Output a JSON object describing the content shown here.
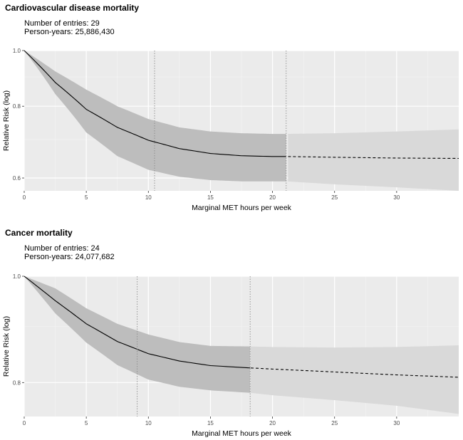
{
  "chart_data": [
    {
      "type": "line",
      "title": "Cardiovascular disease mortality",
      "entries_text": "Number of entries: 29",
      "person_years_text": "Person-years: 25,886,430",
      "xlabel": "Marginal MET hours per week",
      "ylabel": "Relative Risk (log)",
      "log_y": true,
      "xlim": [
        0,
        35
      ],
      "ylim": [
        0.57,
        1.0
      ],
      "x_ticks": [
        0,
        5,
        10,
        15,
        20,
        25,
        30
      ],
      "x_tick_labels": [
        "0",
        "5",
        "10",
        "15",
        "20",
        "25",
        "30"
      ],
      "y_ticks": [
        0.6,
        0.8,
        1.0
      ],
      "y_tick_labels": [
        "0.6",
        "0.8",
        "1.0"
      ],
      "reference_lines_x": [
        10.5,
        21.1
      ],
      "observed_max_x": 21.1,
      "grid": true,
      "series": [
        {
          "x": [
            0,
            2.5,
            5,
            7.5,
            10,
            12.5,
            15,
            17.5,
            20,
            21.1,
            25,
            30,
            35
          ],
          "y": [
            1.0,
            0.88,
            0.79,
            0.735,
            0.698,
            0.675,
            0.662,
            0.656,
            0.654,
            0.654,
            0.652,
            0.65,
            0.649
          ],
          "lower": [
            1.0,
            0.84,
            0.72,
            0.655,
            0.62,
            0.603,
            0.595,
            0.592,
            0.592,
            0.592,
            0.585,
            0.578,
            0.57
          ],
          "upper": [
            1.0,
            0.92,
            0.855,
            0.8,
            0.76,
            0.735,
            0.723,
            0.718,
            0.716,
            0.716,
            0.718,
            0.723,
            0.729
          ]
        }
      ]
    },
    {
      "type": "line",
      "title": "Cancer mortality",
      "entries_text": "Number of entries: 24",
      "person_years_text": "Person-years: 24,077,682",
      "xlabel": "Marginal MET hours per week",
      "ylabel": "Relative Risk (log)",
      "log_y": true,
      "xlim": [
        0,
        35
      ],
      "ylim": [
        0.745,
        1.0
      ],
      "x_ticks": [
        0,
        5,
        10,
        15,
        20,
        25,
        30
      ],
      "x_tick_labels": [
        "0",
        "5",
        "10",
        "15",
        "20",
        "25",
        "30"
      ],
      "y_ticks": [
        0.8,
        1.0
      ],
      "y_tick_labels": [
        "0.8",
        "1.0"
      ],
      "reference_lines_x": [
        9.1,
        18.2
      ],
      "observed_max_x": 18.2,
      "grid": true,
      "series": [
        {
          "x": [
            0,
            2.5,
            5,
            7.5,
            10,
            12.5,
            15,
            18.2,
            20,
            25,
            30,
            35
          ],
          "y": [
            1.0,
            0.95,
            0.905,
            0.872,
            0.85,
            0.837,
            0.829,
            0.825,
            0.823,
            0.818,
            0.813,
            0.809
          ],
          "lower": [
            1.0,
            0.925,
            0.87,
            0.83,
            0.805,
            0.793,
            0.787,
            0.783,
            0.779,
            0.771,
            0.762,
            0.749
          ],
          "upper": [
            1.0,
            0.975,
            0.935,
            0.905,
            0.885,
            0.871,
            0.864,
            0.863,
            0.862,
            0.861,
            0.862,
            0.865
          ]
        }
      ]
    }
  ]
}
